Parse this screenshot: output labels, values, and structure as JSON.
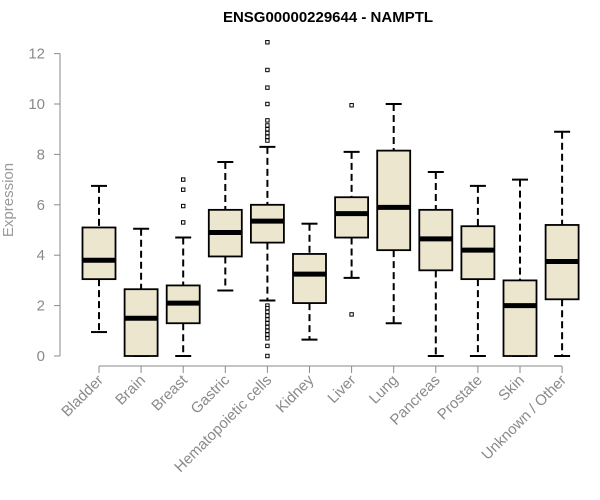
{
  "chart_data": {
    "type": "box",
    "title": "ENSG00000229644 - NAMPTL",
    "xlabel": "",
    "ylabel": "Expression",
    "ylim": [
      0,
      12.5
    ],
    "yticks": [
      0,
      2,
      4,
      6,
      8,
      10,
      12
    ],
    "grid": false,
    "colors": {
      "box_fill": "#ede6cf",
      "box_stroke": "#000000",
      "axis": "#8a8a8a"
    },
    "categories": [
      "Bladder",
      "Brain",
      "Breast",
      "Gastric",
      "Hematopoietic cells",
      "Kidney",
      "Liver",
      "Lung",
      "Pancreas",
      "Prostate",
      "Skin",
      "Unknown / Other"
    ],
    "boxes": [
      {
        "min": 0.95,
        "q1": 3.05,
        "median": 3.8,
        "q3": 5.1,
        "max": 6.75,
        "outliers": []
      },
      {
        "min": 0.0,
        "q1": 0.0,
        "median": 1.5,
        "q3": 2.65,
        "max": 5.05,
        "outliers": []
      },
      {
        "min": 0.0,
        "q1": 1.3,
        "median": 2.1,
        "q3": 2.8,
        "max": 4.7,
        "outliers": [
          5.3,
          5.95,
          6.6,
          7.0
        ]
      },
      {
        "min": 2.6,
        "q1": 3.95,
        "median": 4.9,
        "q3": 5.8,
        "max": 7.7,
        "outliers": []
      },
      {
        "min": 2.2,
        "q1": 4.5,
        "median": 5.35,
        "q3": 6.0,
        "max": 8.3,
        "outliers": [
          12.45,
          11.35,
          10.65,
          10.0,
          9.35,
          9.15,
          9.0,
          8.85,
          8.7,
          8.55,
          2.0,
          1.9,
          1.75,
          1.6,
          1.45,
          1.3,
          1.15,
          1.0,
          0.85,
          0.7,
          0.4,
          0.0
        ]
      },
      {
        "min": 0.65,
        "q1": 2.1,
        "median": 3.25,
        "q3": 4.05,
        "max": 5.25,
        "outliers": []
      },
      {
        "min": 3.1,
        "q1": 4.7,
        "median": 5.65,
        "q3": 6.3,
        "max": 8.1,
        "outliers": [
          9.95,
          1.65
        ]
      },
      {
        "min": 1.3,
        "q1": 4.2,
        "median": 5.9,
        "q3": 8.15,
        "max": 10.0,
        "outliers": []
      },
      {
        "min": 0.0,
        "q1": 3.4,
        "median": 4.65,
        "q3": 5.8,
        "max": 7.3,
        "outliers": []
      },
      {
        "min": 0.0,
        "q1": 3.05,
        "median": 4.2,
        "q3": 5.15,
        "max": 6.75,
        "outliers": []
      },
      {
        "min": 0.0,
        "q1": 0.0,
        "median": 2.0,
        "q3": 3.0,
        "max": 7.0,
        "outliers": []
      },
      {
        "min": 0.0,
        "q1": 2.25,
        "median": 3.75,
        "q3": 5.2,
        "max": 8.9,
        "outliers": []
      }
    ]
  }
}
